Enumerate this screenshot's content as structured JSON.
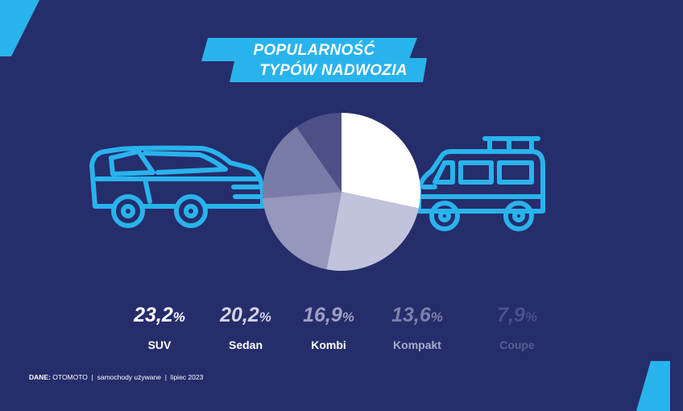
{
  "title_lines": [
    "POPULARNOŚĆ",
    "TYPÓW NADWOZIA"
  ],
  "colors": {
    "background": "#262d6b",
    "accent": "#29b3ec",
    "slices": [
      "#ffffff",
      "#c1c3dc",
      "#9597bd",
      "#7a7ca8",
      "#4c5086"
    ]
  },
  "icons": [
    "suv-car-icon",
    "minivan-icon"
  ],
  "chart_data": {
    "type": "pie",
    "title": "POPULARNOŚĆ TYPÓW NADWOZIA",
    "start": "top",
    "direction": "clockwise",
    "slices": [
      {
        "label": "SUV",
        "value": 23.2,
        "value_text": "23,2",
        "label_color": "#ffffff",
        "value_color": "#ffffff"
      },
      {
        "label": "Sedan",
        "value": 20.2,
        "value_text": "20,2",
        "label_color": "#ffffff",
        "value_color": "#d2d4e6"
      },
      {
        "label": "Kombi",
        "value": 16.9,
        "value_text": "16,9",
        "label_color": "#ffffff",
        "value_color": "#9ea0c3"
      },
      {
        "label": "Kompakt",
        "value": 13.6,
        "value_text": "13,6",
        "label_color": "#a8abcc",
        "value_color": "#7d80aa"
      },
      {
        "label": "Coupe",
        "value": 7.9,
        "value_text": "7,9",
        "label_color": "#5b5f92",
        "value_color": "#4d518a"
      }
    ],
    "unit": "%"
  },
  "footer": {
    "source_label": "DANE:",
    "source": "OTOMOTO",
    "separator": "|",
    "scope": "samochody używane",
    "date": "lipiec 2023"
  }
}
